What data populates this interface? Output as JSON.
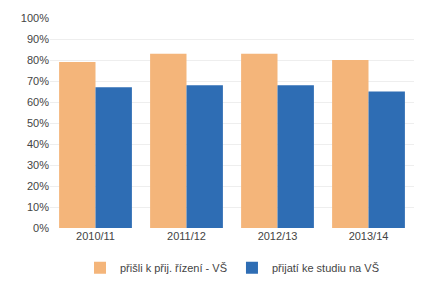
{
  "chart_data": {
    "type": "bar",
    "categories": [
      "2010/11",
      "2011/12",
      "2012/13",
      "2013/14"
    ],
    "series": [
      {
        "name": "přišli k přij. řízení - VŠ",
        "color": "#F4B57A",
        "values": [
          0.79,
          0.83,
          0.83,
          0.8
        ]
      },
      {
        "name": "přijatí ke studiu na VŠ",
        "color": "#2E6DB4",
        "values": [
          0.67,
          0.68,
          0.68,
          0.65
        ]
      }
    ],
    "ylim": [
      0,
      1.0
    ],
    "yticks": [
      {
        "value": 0.0,
        "label": "0%"
      },
      {
        "value": 0.1,
        "label": "10%"
      },
      {
        "value": 0.2,
        "label": "20%"
      },
      {
        "value": 0.3,
        "label": "30%"
      },
      {
        "value": 0.4,
        "label": "40%"
      },
      {
        "value": 0.5,
        "label": "50%"
      },
      {
        "value": 0.6,
        "label": "60%"
      },
      {
        "value": 0.7,
        "label": "70%"
      },
      {
        "value": 0.8,
        "label": "80%"
      },
      {
        "value": 0.9,
        "label": "90%"
      },
      {
        "value": 1.0,
        "label": "100%"
      }
    ],
    "grid": true,
    "legend": "bottom"
  }
}
